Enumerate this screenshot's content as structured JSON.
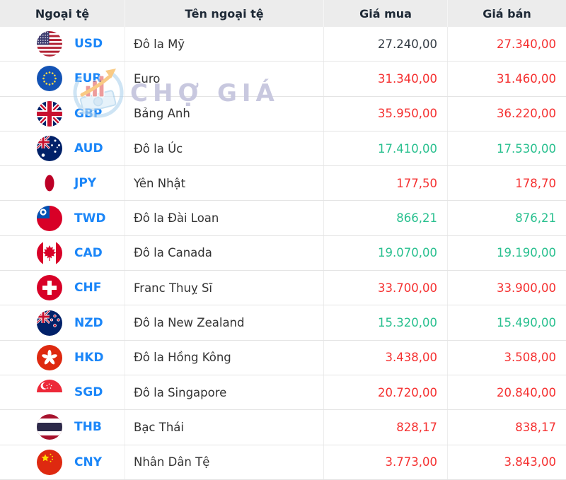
{
  "header": {
    "col_currency": "Ngoại tệ",
    "col_name": "Tên ngoại tệ",
    "col_buy": "Giá mua",
    "col_sell": "Giá bán"
  },
  "watermark": {
    "text": "CHỢ GIÁ",
    "logo_icon": "cho-gia-logo"
  },
  "colors": {
    "price_up_green": "#29c08f",
    "price_down_red": "#f53030",
    "price_neutral_dark": "#333b44",
    "code_blue": "#1b86f8",
    "header_bg": "#ececec"
  },
  "rows": [
    {
      "code": "USD",
      "flag_icon": "usd-flag-icon",
      "name": "Đô la Mỹ",
      "buy": "27.240,00",
      "buy_color": "dark",
      "sell": "27.340,00",
      "sell_color": "red"
    },
    {
      "code": "EUR",
      "flag_icon": "eur-flag-icon",
      "name": "Euro",
      "buy": "31.340,00",
      "buy_color": "red",
      "sell": "31.460,00",
      "sell_color": "red"
    },
    {
      "code": "GBP",
      "flag_icon": "gbp-flag-icon",
      "name": "Bảng Anh",
      "buy": "35.950,00",
      "buy_color": "red",
      "sell": "36.220,00",
      "sell_color": "red"
    },
    {
      "code": "AUD",
      "flag_icon": "aud-flag-icon",
      "name": "Đô la Úc",
      "buy": "17.410,00",
      "buy_color": "green",
      "sell": "17.530,00",
      "sell_color": "green"
    },
    {
      "code": "JPY",
      "flag_icon": "jpy-flag-icon",
      "name": "Yên Nhật",
      "buy": "177,50",
      "buy_color": "red",
      "sell": "178,70",
      "sell_color": "red"
    },
    {
      "code": "TWD",
      "flag_icon": "twd-flag-icon",
      "name": "Đô la Đài Loan",
      "buy": "866,21",
      "buy_color": "green",
      "sell": "876,21",
      "sell_color": "green"
    },
    {
      "code": "CAD",
      "flag_icon": "cad-flag-icon",
      "name": "Đô la Canada",
      "buy": "19.070,00",
      "buy_color": "green",
      "sell": "19.190,00",
      "sell_color": "green"
    },
    {
      "code": "CHF",
      "flag_icon": "chf-flag-icon",
      "name": "Franc Thuỵ Sĩ",
      "buy": "33.700,00",
      "buy_color": "red",
      "sell": "33.900,00",
      "sell_color": "red"
    },
    {
      "code": "NZD",
      "flag_icon": "nzd-flag-icon",
      "name": "Đô la New Zealand",
      "buy": "15.320,00",
      "buy_color": "green",
      "sell": "15.490,00",
      "sell_color": "green"
    },
    {
      "code": "HKD",
      "flag_icon": "hkd-flag-icon",
      "name": "Đô la Hồng Kông",
      "buy": "3.438,00",
      "buy_color": "red",
      "sell": "3.508,00",
      "sell_color": "red"
    },
    {
      "code": "SGD",
      "flag_icon": "sgd-flag-icon",
      "name": "Đô la Singapore",
      "buy": "20.720,00",
      "buy_color": "red",
      "sell": "20.840,00",
      "sell_color": "red"
    },
    {
      "code": "THB",
      "flag_icon": "thb-flag-icon",
      "name": "Bạc Thái",
      "buy": "828,17",
      "buy_color": "red",
      "sell": "838,17",
      "sell_color": "red"
    },
    {
      "code": "CNY",
      "flag_icon": "cny-flag-icon",
      "name": "Nhân Dân Tệ",
      "buy": "3.773,00",
      "buy_color": "red",
      "sell": "3.843,00",
      "sell_color": "red"
    }
  ]
}
